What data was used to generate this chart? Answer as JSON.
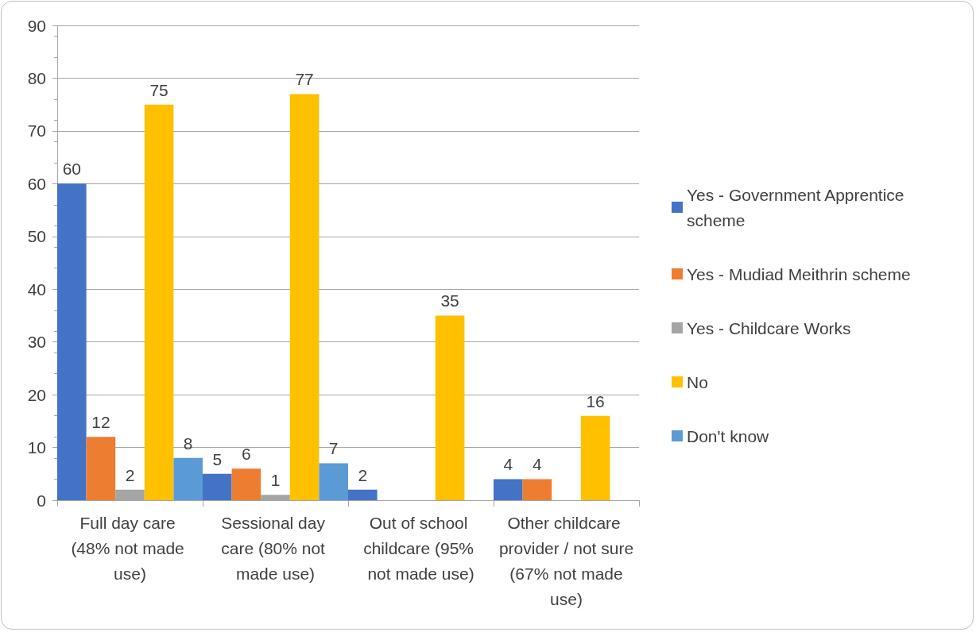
{
  "chart_data": {
    "type": "bar",
    "categories": [
      "Full day care (48% not made use)",
      "Sessional day care (80% not made use)",
      "Out of school childcare (95% not made use)",
      "Other childcare provider / not sure (67% not made use)"
    ],
    "series": [
      {
        "name": "Yes - Government Apprentice scheme",
        "color": "#4472c4",
        "values": [
          60,
          5,
          2,
          4
        ]
      },
      {
        "name": "Yes - Mudiad Meithrin scheme",
        "color": "#ed7d31",
        "values": [
          12,
          6,
          null,
          4
        ]
      },
      {
        "name": "Yes - Childcare Works",
        "color": "#a5a5a5",
        "values": [
          2,
          1,
          null,
          null
        ]
      },
      {
        "name": "No",
        "color": "#ffc000",
        "values": [
          75,
          77,
          35,
          16
        ]
      },
      {
        "name": "Don't know",
        "color": "#5b9bd5",
        "values": [
          8,
          7,
          null,
          null
        ]
      }
    ],
    "ylim": [
      0,
      90
    ],
    "yticks": [
      0,
      10,
      20,
      30,
      40,
      50,
      60,
      70,
      80,
      90
    ],
    "grid": "y",
    "legend": "right",
    "data_labels": true
  }
}
